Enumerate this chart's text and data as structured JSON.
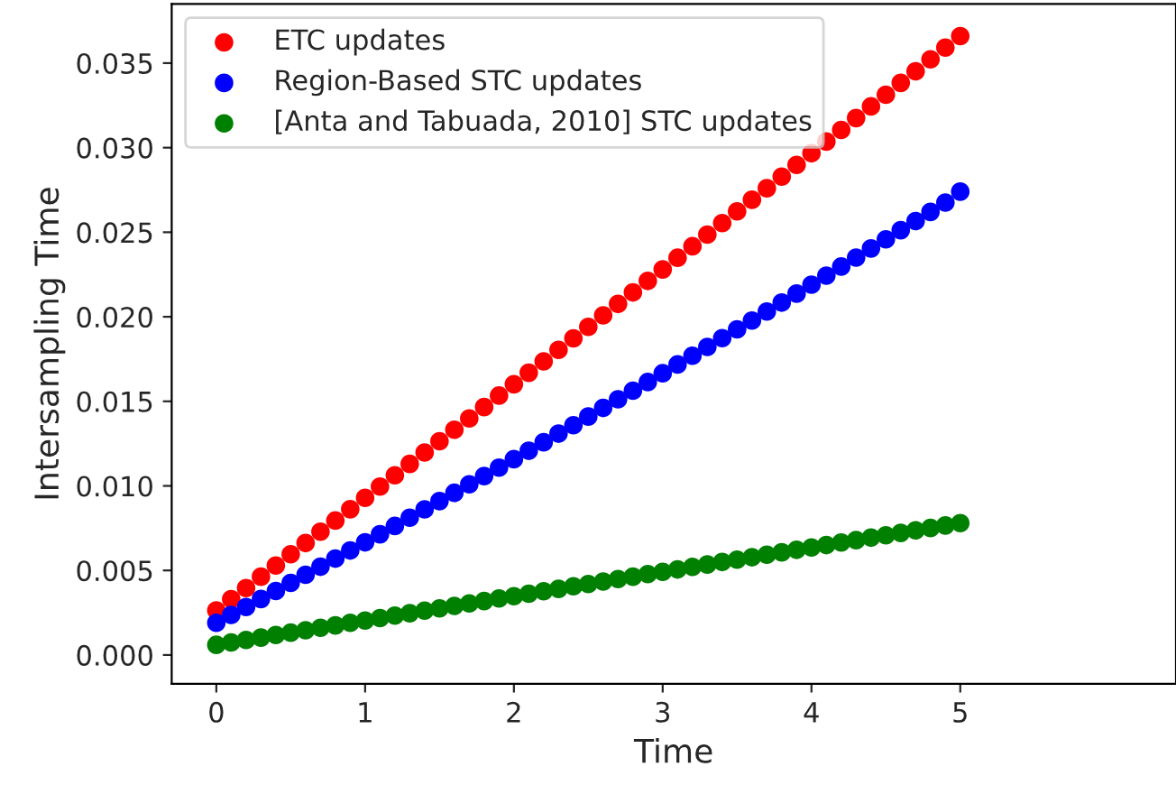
{
  "chart_data": {
    "type": "scatter",
    "xlabel": "Time",
    "ylabel": "Intersampling Time",
    "x": [
      0,
      0.1,
      0.2,
      0.3,
      0.4,
      0.5,
      0.6,
      0.7,
      0.8,
      0.9,
      1.0,
      1.1,
      1.2,
      1.3,
      1.4,
      1.5,
      1.6,
      1.7,
      1.8,
      1.9,
      2.0,
      2.1,
      2.2,
      2.3,
      2.4,
      2.5,
      2.6,
      2.7,
      2.8,
      2.9,
      3.0,
      3.1,
      3.2,
      3.3,
      3.4,
      3.5,
      3.6,
      3.7,
      3.8,
      3.9,
      4.0,
      4.1,
      4.2,
      4.3,
      4.4,
      4.5,
      4.6,
      4.7,
      4.8,
      4.9,
      5.0
    ],
    "series": [
      {
        "name": "ETC updates",
        "color": "#ff0000",
        "values": [
          0.00264,
          0.0033,
          0.00396,
          0.00463,
          0.00529,
          0.00596,
          0.00662,
          0.00729,
          0.00795,
          0.00862,
          0.00929,
          0.00996,
          0.01063,
          0.0113,
          0.01197,
          0.01264,
          0.01332,
          0.01399,
          0.01466,
          0.01534,
          0.01601,
          0.01669,
          0.01736,
          0.01804,
          0.01872,
          0.0194,
          0.02008,
          0.02076,
          0.02144,
          0.02212,
          0.0228,
          0.02349,
          0.02417,
          0.02486,
          0.02554,
          0.02623,
          0.02692,
          0.0276,
          0.02829,
          0.02898,
          0.02967,
          0.03036,
          0.03105,
          0.03175,
          0.03244,
          0.03313,
          0.03383,
          0.03452,
          0.03522,
          0.03592,
          0.0366
        ]
      },
      {
        "name": "Region-Based STC updates",
        "color": "#0000ff",
        "values": [
          0.0019,
          0.00237,
          0.00284,
          0.00331,
          0.00378,
          0.00426,
          0.00474,
          0.00522,
          0.0057,
          0.00618,
          0.00666,
          0.00714,
          0.00763,
          0.00812,
          0.00861,
          0.0091,
          0.00959,
          0.01009,
          0.01058,
          0.01108,
          0.01158,
          0.01208,
          0.01258,
          0.01309,
          0.01359,
          0.0141,
          0.01461,
          0.01512,
          0.01563,
          0.01614,
          0.01666,
          0.01718,
          0.0177,
          0.01822,
          0.01874,
          0.01926,
          0.01978,
          0.02031,
          0.02084,
          0.02137,
          0.0219,
          0.02243,
          0.02297,
          0.0235,
          0.02404,
          0.02458,
          0.02512,
          0.02566,
          0.0262,
          0.02675,
          0.0274
        ]
      },
      {
        "name": "[Anta and Tabuada, 2010] STC updates",
        "color": "#008000",
        "values": [
          0.0006,
          0.00074,
          0.00089,
          0.00103,
          0.00118,
          0.00132,
          0.00146,
          0.00161,
          0.00175,
          0.0019,
          0.00204,
          0.00218,
          0.00233,
          0.00247,
          0.00262,
          0.00276,
          0.0029,
          0.00305,
          0.00319,
          0.00334,
          0.00348,
          0.00362,
          0.00377,
          0.00391,
          0.00406,
          0.0042,
          0.00434,
          0.00449,
          0.00463,
          0.00478,
          0.00492,
          0.00506,
          0.00521,
          0.00535,
          0.0055,
          0.00564,
          0.00578,
          0.00593,
          0.00607,
          0.00622,
          0.00636,
          0.0065,
          0.00665,
          0.00679,
          0.00694,
          0.00708,
          0.00722,
          0.00737,
          0.00751,
          0.00766,
          0.0078
        ]
      }
    ],
    "xlim": [
      -0.3,
      6.45
    ],
    "ylim": [
      -0.0017,
      0.0385
    ],
    "xticks": [
      0,
      1,
      2,
      3,
      4,
      5
    ],
    "yticks": [
      {
        "value": 0,
        "label": "0.000"
      },
      {
        "value": 0.005,
        "label": "0.005"
      },
      {
        "value": 0.01,
        "label": "0.010"
      },
      {
        "value": 0.015,
        "label": "0.015"
      },
      {
        "value": 0.02,
        "label": "0.020"
      },
      {
        "value": 0.025,
        "label": "0.025"
      },
      {
        "value": 0.03,
        "label": "0.030"
      },
      {
        "value": 0.035,
        "label": "0.035"
      }
    ],
    "marker": "circle",
    "legend": "top left",
    "grid": false
  }
}
